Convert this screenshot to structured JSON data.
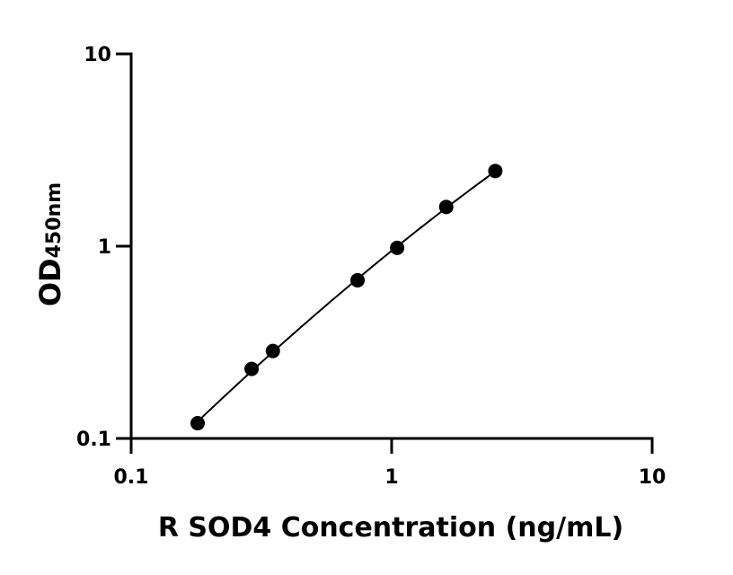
{
  "chart_data": {
    "type": "scatter",
    "title": "",
    "xlabel": "R SOD4 Concentration (ng/mL)",
    "ylabel_main": "OD",
    "ylabel_sub": "450nm",
    "x_scale": "log",
    "y_scale": "log",
    "xlim": [
      0.1,
      10
    ],
    "ylim": [
      0.1,
      10
    ],
    "x_ticks": [
      0.1,
      1,
      10
    ],
    "x_tick_labels": [
      "0.1",
      "1",
      "10"
    ],
    "y_ticks": [
      0.1,
      1,
      10
    ],
    "y_tick_labels": [
      "0.1",
      "1",
      "10"
    ],
    "grid": false,
    "legend": "none",
    "series": [
      {
        "x": [
          0.18,
          0.29,
          0.35,
          0.74,
          1.05,
          1.62,
          2.5
        ],
        "y": [
          0.12,
          0.23,
          0.285,
          0.665,
          0.98,
          1.6,
          2.46
        ],
        "marker": "circle",
        "fit_curve": true
      }
    ],
    "color": "#000000"
  }
}
